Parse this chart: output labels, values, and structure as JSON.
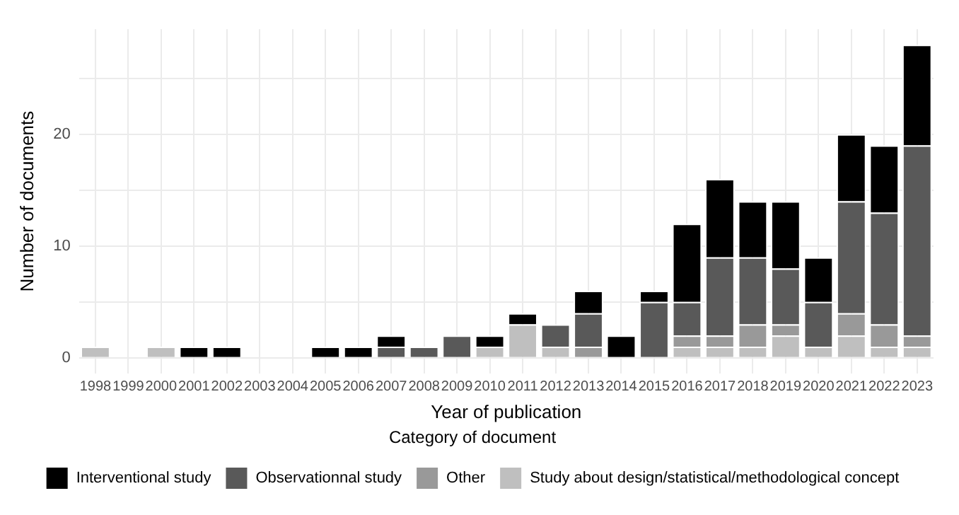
{
  "chart_data": {
    "type": "bar",
    "xlabel": "Year of publication",
    "ylabel": "Number of documents",
    "legend_title": "Category of document",
    "categories": [
      "1998",
      "1999",
      "2000",
      "2001",
      "2002",
      "2003",
      "2004",
      "2005",
      "2006",
      "2007",
      "2008",
      "2009",
      "2010",
      "2011",
      "2012",
      "2013",
      "2014",
      "2015",
      "2016",
      "2017",
      "2018",
      "2019",
      "2020",
      "2021",
      "2022",
      "2023"
    ],
    "stacked": true,
    "series": [
      {
        "name": "Study about design/statistical/methodological concept",
        "color": "#bfbfbf",
        "values": [
          1,
          0,
          1,
          0,
          0,
          0,
          0,
          0,
          0,
          0,
          0,
          0,
          1,
          3,
          1,
          0,
          0,
          0,
          1,
          1,
          1,
          2,
          1,
          2,
          1,
          1
        ]
      },
      {
        "name": "Other",
        "color": "#999999",
        "values": [
          0,
          0,
          0,
          0,
          0,
          0,
          0,
          0,
          0,
          0,
          0,
          0,
          0,
          0,
          0,
          1,
          0,
          0,
          1,
          1,
          2,
          1,
          0,
          2,
          2,
          1
        ]
      },
      {
        "name": "Observationnal study",
        "color": "#595959",
        "values": [
          0,
          0,
          0,
          0,
          0,
          0,
          0,
          0,
          0,
          1,
          1,
          2,
          0,
          0,
          2,
          3,
          0,
          5,
          3,
          7,
          6,
          5,
          4,
          10,
          10,
          17
        ]
      },
      {
        "name": "Interventional study",
        "color": "#000000",
        "values": [
          0,
          0,
          0,
          1,
          1,
          0,
          0,
          1,
          1,
          1,
          0,
          0,
          1,
          1,
          0,
          2,
          2,
          1,
          7,
          7,
          5,
          6,
          4,
          6,
          6,
          9
        ]
      }
    ],
    "ylim": [
      -1.4,
      29.4
    ],
    "yticks": [
      0,
      {
        "value": 5,
        "label": null
      },
      10,
      {
        "value": 15,
        "label": null
      },
      20,
      {
        "value": 25,
        "label": null
      }
    ],
    "grid": true,
    "legend": "bottom"
  }
}
